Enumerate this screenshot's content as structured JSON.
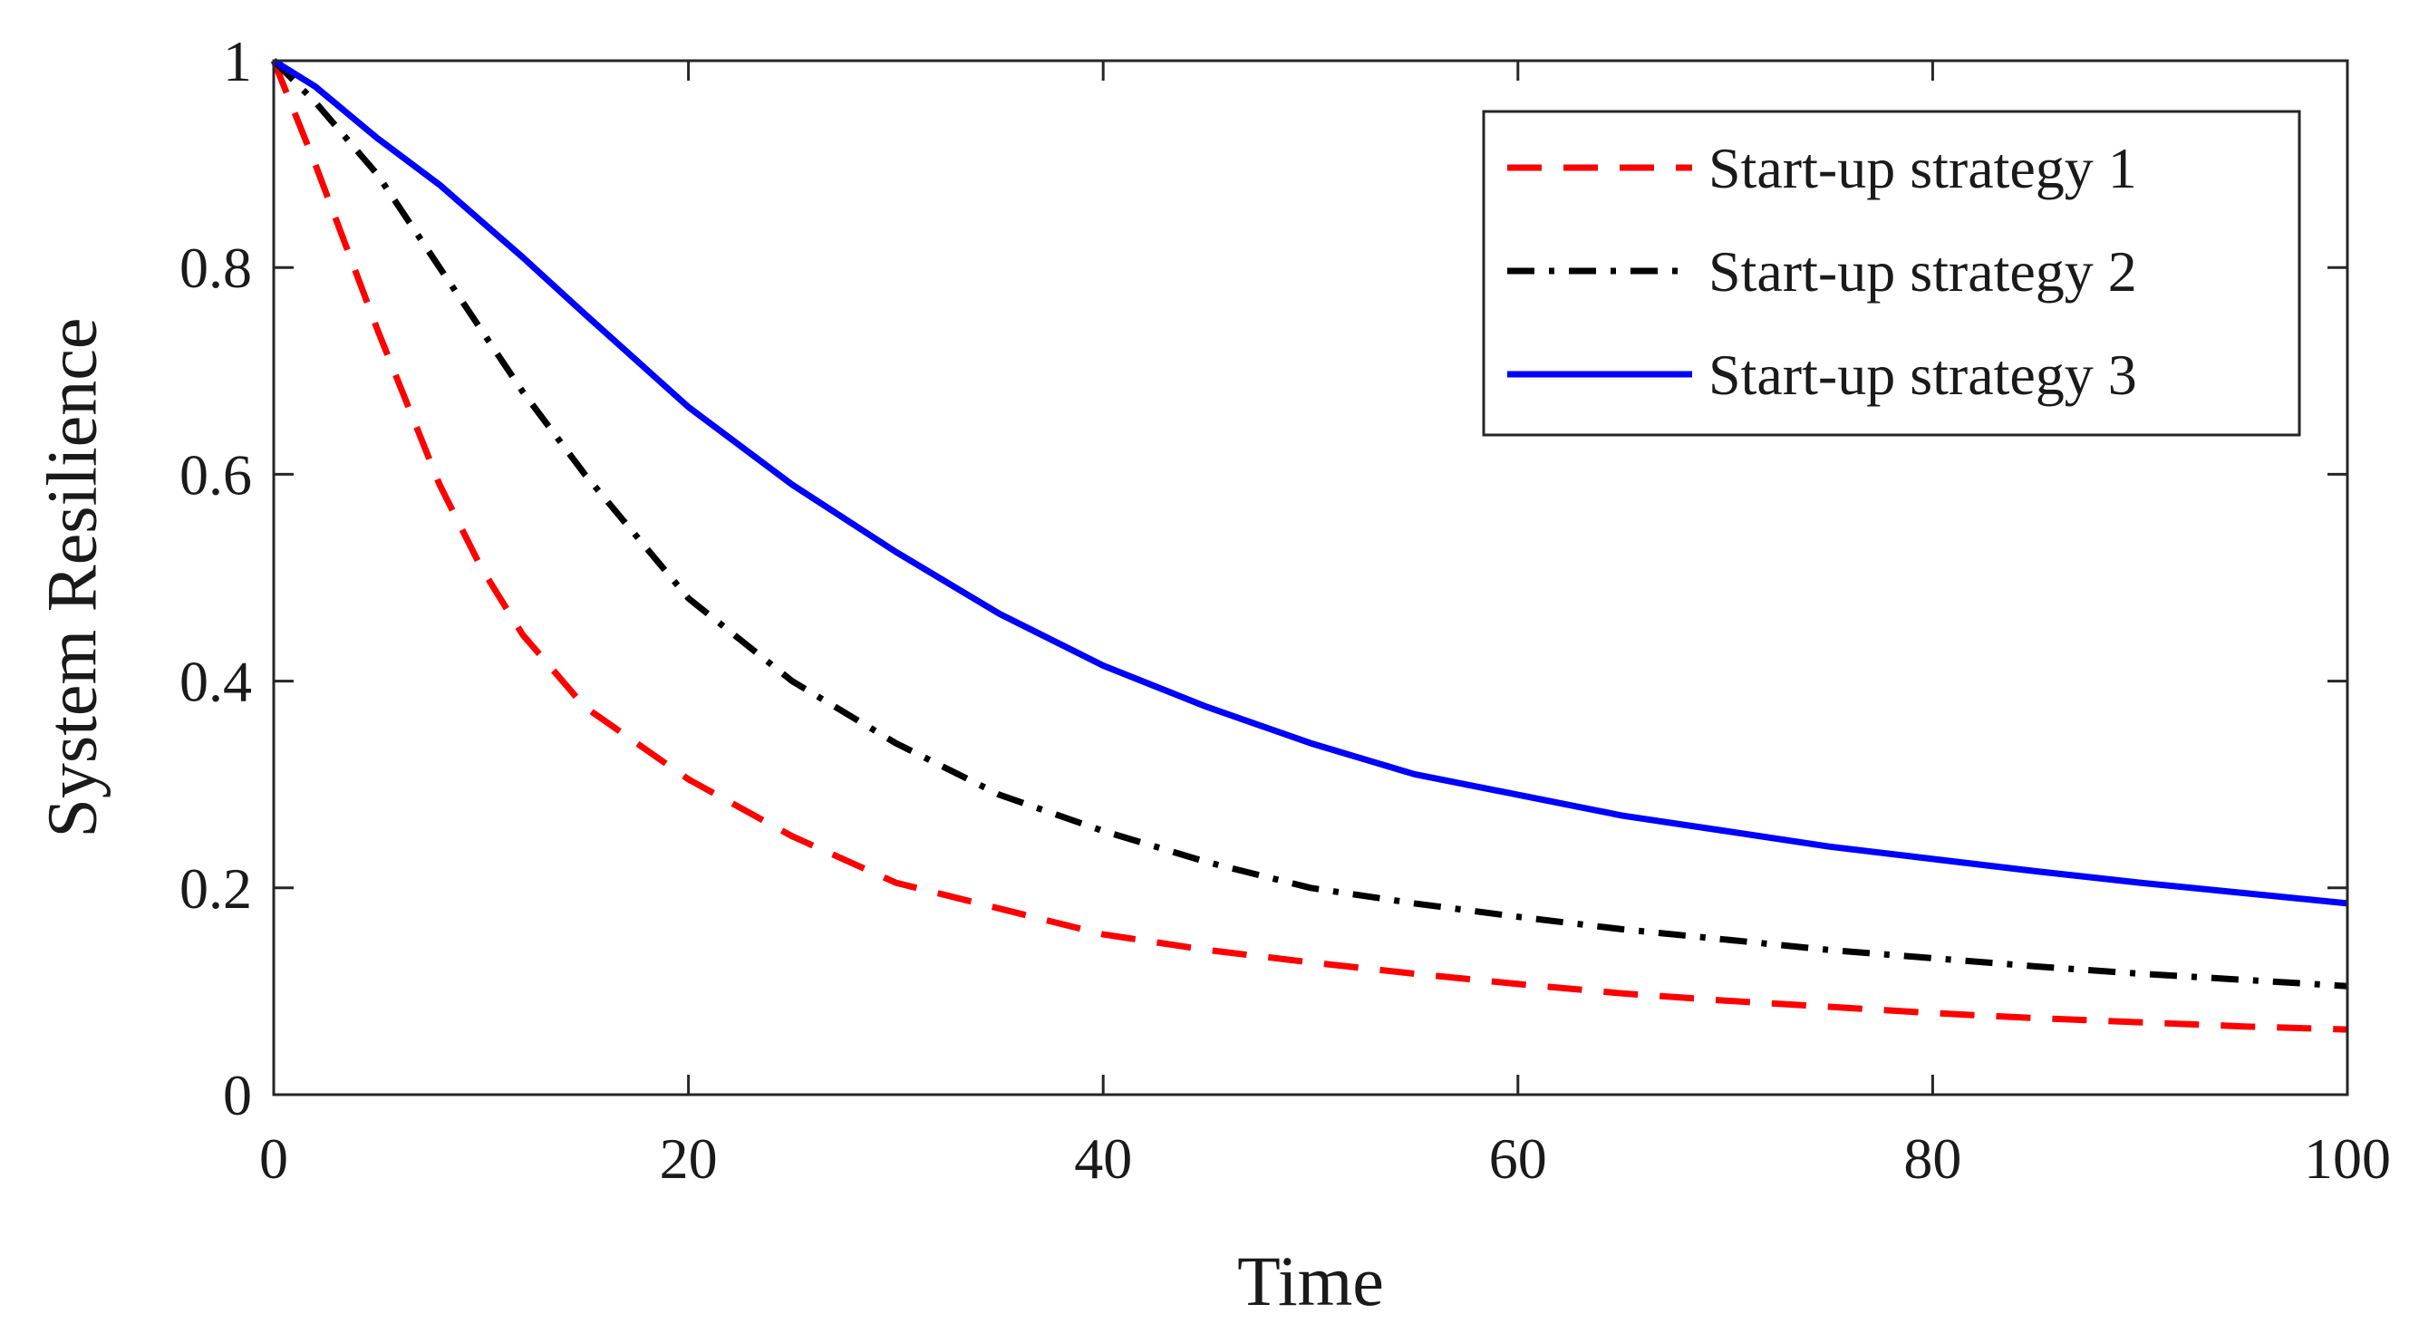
{
  "chart_data": {
    "type": "line",
    "title": "",
    "xlabel": "Time",
    "ylabel": "System Resilience",
    "xlim": [
      0,
      100
    ],
    "ylim": [
      0,
      1
    ],
    "xticks": [
      0,
      20,
      40,
      60,
      80,
      100
    ],
    "yticks": [
      0,
      0.2,
      0.4,
      0.6,
      0.8,
      1
    ],
    "xtick_labels": [
      "0",
      "20",
      "40",
      "60",
      "80",
      "100"
    ],
    "ytick_labels": [
      "0",
      "0.2",
      "0.4",
      "0.6",
      "0.8",
      "1"
    ],
    "grid": false,
    "legend_position": "top-right",
    "x": [
      0,
      2,
      5,
      8,
      10,
      12,
      15,
      20,
      25,
      30,
      35,
      40,
      45,
      50,
      55,
      60,
      65,
      70,
      75,
      80,
      85,
      90,
      95,
      100
    ],
    "series": [
      {
        "name": "Start-up strategy 1",
        "color": "#ff0000",
        "style": "dashed",
        "values": [
          1.0,
          0.9,
          0.74,
          0.59,
          0.51,
          0.445,
          0.375,
          0.305,
          0.25,
          0.205,
          0.18,
          0.155,
          0.14,
          0.128,
          0.117,
          0.107,
          0.098,
          0.091,
          0.085,
          0.079,
          0.074,
          0.07,
          0.066,
          0.063
        ]
      },
      {
        "name": "Start-up strategy 2",
        "color": "#000000",
        "style": "dashdot",
        "values": [
          1.0,
          0.96,
          0.89,
          0.8,
          0.74,
          0.68,
          0.6,
          0.48,
          0.4,
          0.34,
          0.29,
          0.255,
          0.225,
          0.2,
          0.185,
          0.172,
          0.16,
          0.15,
          0.14,
          0.132,
          0.124,
          0.117,
          0.111,
          0.105
        ]
      },
      {
        "name": "Start-up strategy 3",
        "color": "#0000ff",
        "style": "solid",
        "values": [
          1.0,
          0.975,
          0.925,
          0.88,
          0.845,
          0.81,
          0.755,
          0.665,
          0.59,
          0.525,
          0.465,
          0.415,
          0.375,
          0.34,
          0.31,
          0.29,
          0.27,
          0.255,
          0.24,
          0.228,
          0.216,
          0.205,
          0.195,
          0.185
        ]
      }
    ]
  }
}
